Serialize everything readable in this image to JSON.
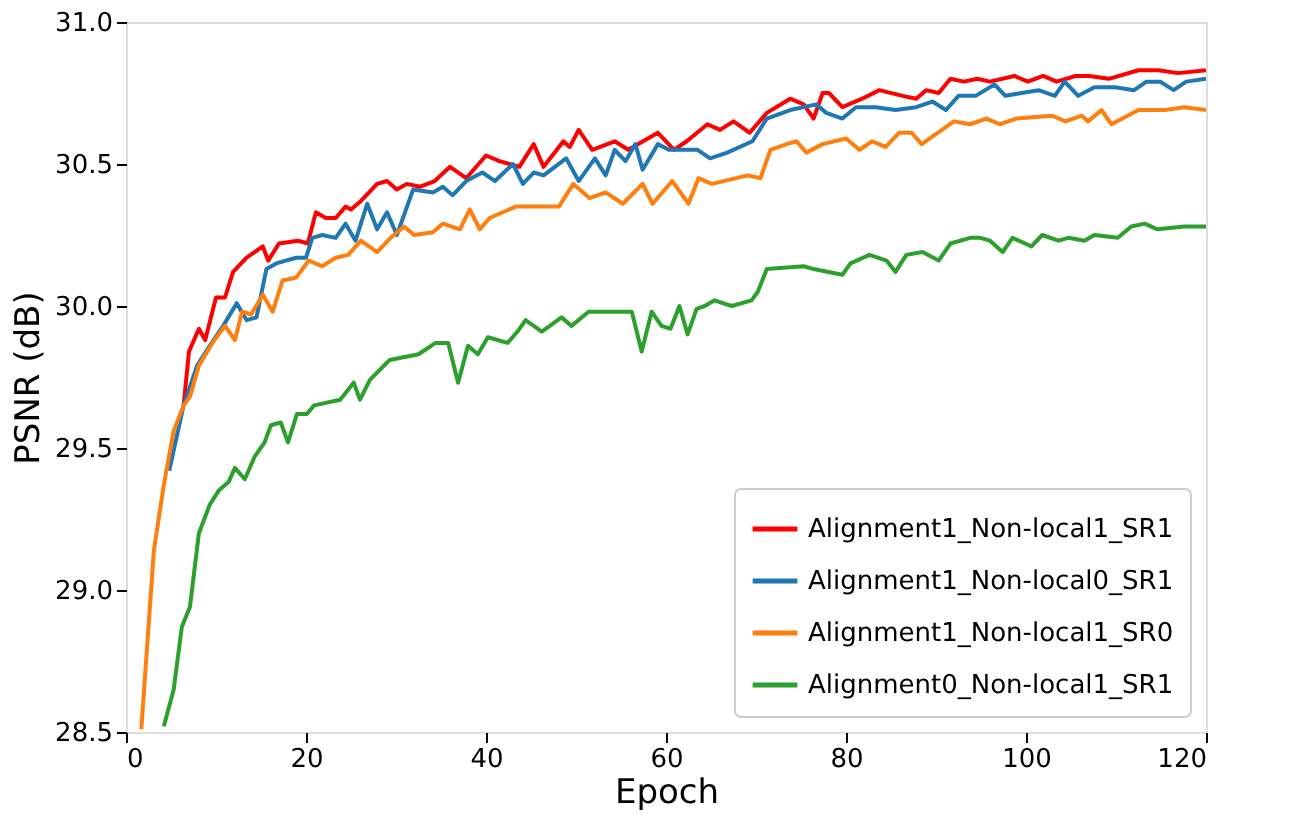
{
  "chart_data": {
    "type": "line",
    "xlabel": "Epoch",
    "ylabel": "PSNR (dB)",
    "xlim": [
      0,
      120
    ],
    "ylim": [
      28.5,
      31.0
    ],
    "xticks": [
      0,
      20,
      40,
      60,
      80,
      100,
      120
    ],
    "yticks": [
      28.5,
      {
        "value": 29,
        "label": "29.0"
      },
      29.5,
      {
        "value": 30,
        "label": "30.0"
      },
      30.5,
      {
        "value": 31,
        "label": "31.0"
      }
    ],
    "legend": "bottom right",
    "grid": false,
    "marker": "none",
    "line_style": "solid",
    "series": [
      {
        "name": "Alignment1_Non-local1_SR1",
        "color": "#ff0000",
        "x": [
          6.4,
          7,
          8.1,
          8.8,
          10,
          11,
          11.9,
          13.4,
          15.2,
          15.8,
          17,
          19.1,
          20.2,
          21.1,
          22.2,
          23.3,
          24.4,
          25,
          26.1,
          27.9,
          29,
          30.1,
          31.2,
          32.7,
          34.3,
          36,
          37.8,
          40,
          41.5,
          43.7,
          45.3,
          46.4,
          48.6,
          49.3,
          50.3,
          51.8,
          54.3,
          55.8,
          59.1,
          60.9,
          62.3,
          64.6,
          66,
          67.5,
          69.3,
          71.2,
          73.8,
          75.3,
          76.4,
          77.4,
          78.1,
          79.6,
          81.8,
          83.7,
          86.3,
          87.8,
          88.9,
          90.3,
          91.6,
          93.1,
          94.6,
          96,
          98.7,
          100.2,
          101.9,
          103.4,
          105.5,
          107,
          109.2,
          112.5,
          114.7,
          116.9,
          120
        ],
        "values": [
          29.65,
          29.84,
          29.92,
          29.88,
          30.03,
          30.03,
          30.12,
          30.17,
          30.21,
          30.16,
          30.22,
          30.23,
          30.22,
          30.33,
          30.31,
          30.31,
          30.35,
          30.34,
          30.37,
          30.43,
          30.44,
          30.41,
          30.43,
          30.42,
          30.44,
          30.49,
          30.45,
          30.53,
          30.51,
          30.49,
          30.57,
          30.49,
          30.58,
          30.56,
          30.62,
          30.55,
          30.58,
          30.55,
          30.61,
          30.55,
          30.58,
          30.64,
          30.62,
          30.65,
          30.61,
          30.68,
          30.73,
          30.71,
          30.66,
          30.75,
          30.75,
          30.7,
          30.73,
          30.76,
          30.74,
          30.73,
          30.76,
          30.75,
          30.8,
          30.79,
          30.8,
          30.79,
          30.81,
          30.79,
          30.81,
          30.79,
          30.81,
          30.81,
          30.8,
          30.83,
          30.83,
          30.82,
          30.83
        ]
      },
      {
        "name": "Alignment1_Non-local0_SR1",
        "color": "#1f77b4",
        "x": [
          4.8,
          6.4,
          7.9,
          9.3,
          10.8,
          12.3,
          13.4,
          14.5,
          15.6,
          16.7,
          18.9,
          20,
          20.7,
          21.8,
          23.3,
          24.4,
          25.5,
          26.8,
          27.9,
          29,
          30.1,
          31.9,
          34.1,
          35.2,
          36.3,
          37.8,
          39.6,
          41,
          43,
          44.1,
          45.3,
          46.4,
          48.9,
          50.3,
          52.1,
          53.3,
          54.3,
          55.5,
          56.6,
          57.4,
          59.1,
          60.3,
          63.5,
          64.9,
          66.8,
          69.6,
          71.2,
          73.8,
          76.7,
          77.8,
          79.6,
          81.1,
          83.3,
          85.5,
          87.8,
          89.6,
          91.1,
          92.5,
          94.4,
          96.5,
          97.7,
          99.5,
          101.4,
          103.2,
          104.3,
          105.8,
          107.6,
          109.9,
          112,
          113.4,
          114.9,
          116.4,
          117.8,
          120
        ],
        "values": [
          29.42,
          29.65,
          29.79,
          29.86,
          29.93,
          30.01,
          29.95,
          29.96,
          30.13,
          30.15,
          30.17,
          30.17,
          30.24,
          30.25,
          30.24,
          30.29,
          30.23,
          30.36,
          30.27,
          30.33,
          30.25,
          30.41,
          30.4,
          30.42,
          30.39,
          30.44,
          30.47,
          30.44,
          30.5,
          30.43,
          30.47,
          30.46,
          30.52,
          30.44,
          30.52,
          30.46,
          30.55,
          30.51,
          30.57,
          30.48,
          30.57,
          30.55,
          30.55,
          30.52,
          30.54,
          30.58,
          30.66,
          30.69,
          30.71,
          30.68,
          30.66,
          30.7,
          30.7,
          30.69,
          30.7,
          30.72,
          30.69,
          30.74,
          30.74,
          30.78,
          30.74,
          30.75,
          30.76,
          30.74,
          30.79,
          30.74,
          30.77,
          30.77,
          30.76,
          30.79,
          30.79,
          30.76,
          30.79,
          30.8
        ]
      },
      {
        "name": "Alignment1_Non-local1_SR0",
        "color": "#ff7f0e",
        "x": [
          1.7,
          3.1,
          4.2,
          5.3,
          6.4,
          7.1,
          8.1,
          9.6,
          11,
          12.1,
          12.9,
          13.9,
          15.2,
          16.3,
          17.4,
          18.9,
          20.3,
          21.8,
          23.3,
          24.7,
          26.1,
          27.9,
          29.4,
          30.9,
          32,
          34.1,
          35.2,
          37.1,
          38.2,
          39.3,
          40.4,
          43.3,
          45.9,
          48.1,
          49.7,
          51.5,
          53.3,
          55.2,
          57.4,
          58.5,
          60.7,
          62.5,
          63.6,
          65.1,
          69.1,
          70.5,
          71.6,
          73.4,
          74.5,
          75.6,
          77.4,
          80,
          81.5,
          82.9,
          84.4,
          85.9,
          87.3,
          88.4,
          92,
          93.8,
          95.6,
          97.1,
          98.9,
          102.9,
          104.4,
          106.2,
          106.9,
          108.4,
          109.5,
          112.5,
          115.4,
          117.6,
          120
        ],
        "values": [
          28.51,
          29.14,
          29.37,
          29.56,
          29.65,
          29.68,
          29.79,
          29.87,
          29.93,
          29.88,
          29.98,
          29.97,
          30.04,
          29.98,
          30.09,
          30.1,
          30.16,
          30.14,
          30.17,
          30.18,
          30.23,
          30.19,
          30.24,
          30.28,
          30.25,
          30.26,
          30.29,
          30.27,
          30.34,
          30.27,
          30.31,
          30.35,
          30.35,
          30.35,
          30.43,
          30.38,
          30.4,
          30.36,
          30.43,
          30.36,
          30.44,
          30.36,
          30.45,
          30.43,
          30.46,
          30.45,
          30.55,
          30.57,
          30.58,
          30.54,
          30.57,
          30.59,
          30.55,
          30.58,
          30.56,
          30.61,
          30.61,
          30.57,
          30.65,
          30.64,
          30.66,
          30.64,
          30.66,
          30.67,
          30.65,
          30.67,
          30.65,
          30.69,
          30.64,
          30.69,
          30.69,
          30.7,
          30.69
        ]
      },
      {
        "name": "Alignment0_Non-local1_SR1",
        "color": "#2ca02c",
        "x": [
          4.2,
          5.3,
          6.2,
          7.1,
          8.1,
          9.3,
          10.3,
          11.4,
          12.1,
          13.2,
          14.3,
          15.4,
          16.1,
          17.2,
          18,
          19,
          20.1,
          20.9,
          23.8,
          25.3,
          26,
          27.1,
          29.3,
          32.5,
          34.4,
          35.8,
          36.9,
          38,
          39.1,
          40.2,
          42.4,
          43.5,
          44.4,
          46.2,
          48.4,
          49.5,
          51.4,
          54.3,
          56.2,
          57.3,
          58.4,
          59.5,
          60.5,
          61.5,
          62.4,
          63.4,
          64.3,
          65.4,
          67.3,
          69.5,
          70.2,
          71.2,
          75.3,
          76.4,
          79.6,
          80.5,
          82.6,
          84.5,
          85.5,
          86.7,
          88.5,
          90.3,
          91.6,
          93.8,
          94.9,
          96,
          97.4,
          98.5,
          100.6,
          101.8,
          103.6,
          104.7,
          106.5,
          107.6,
          110.2,
          111.7,
          113.2,
          114.6,
          117.6,
          120
        ],
        "values": [
          28.52,
          28.65,
          28.87,
          28.94,
          29.2,
          29.3,
          29.35,
          29.38,
          29.43,
          29.39,
          29.47,
          29.52,
          29.58,
          29.59,
          29.52,
          29.62,
          29.62,
          29.65,
          29.67,
          29.73,
          29.67,
          29.74,
          29.81,
          29.83,
          29.87,
          29.87,
          29.73,
          29.86,
          29.83,
          29.89,
          29.87,
          29.91,
          29.95,
          29.91,
          29.96,
          29.93,
          29.98,
          29.98,
          29.98,
          29.84,
          29.98,
          29.93,
          29.92,
          30.0,
          29.9,
          29.99,
          30.0,
          30.02,
          30.0,
          30.02,
          30.05,
          30.13,
          30.14,
          30.13,
          30.11,
          30.15,
          30.18,
          30.16,
          30.12,
          30.18,
          30.19,
          30.16,
          30.22,
          30.24,
          30.24,
          30.23,
          30.19,
          30.24,
          30.21,
          30.25,
          30.23,
          30.24,
          30.23,
          30.25,
          30.24,
          30.28,
          30.29,
          30.27,
          30.28,
          30.28
        ]
      }
    ]
  }
}
